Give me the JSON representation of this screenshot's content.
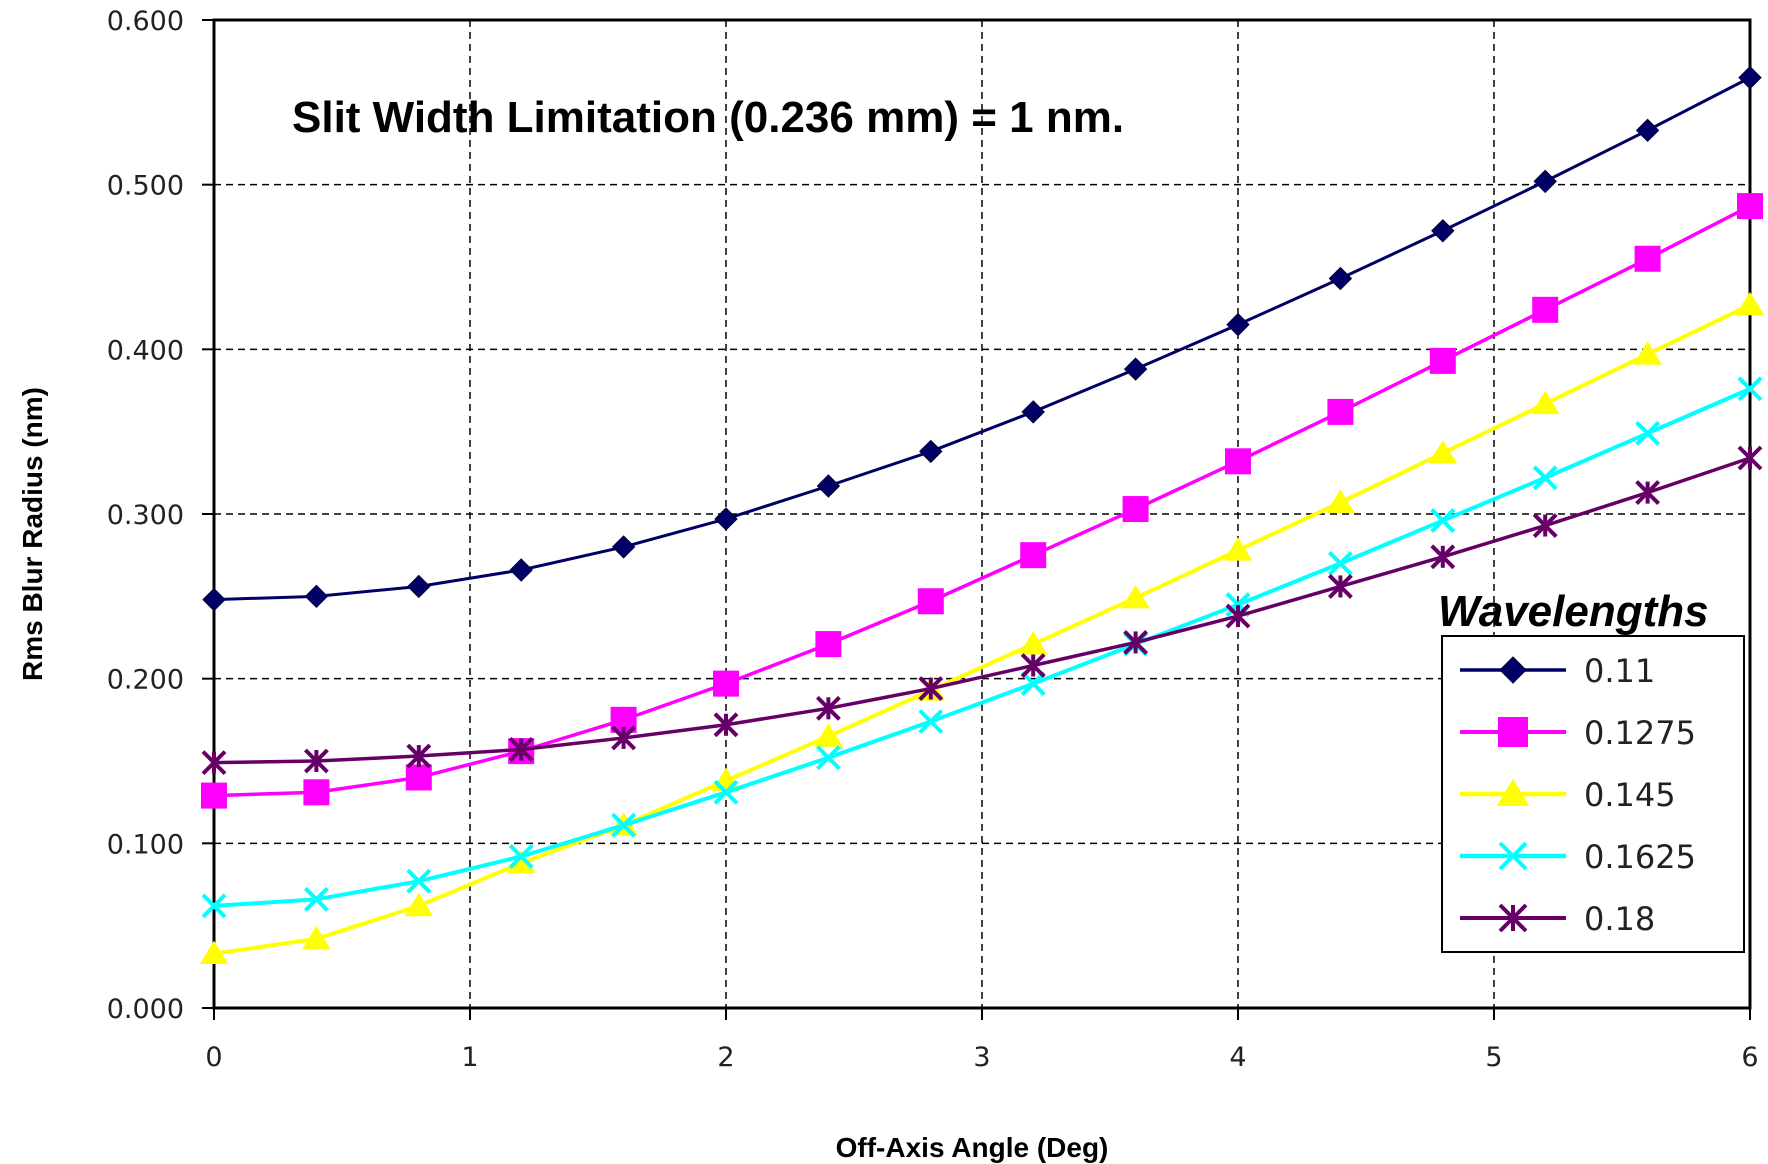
{
  "chart_data": {
    "type": "line",
    "title": "Slit Width Limitation (0.236 mm) = 1 nm.",
    "xlabel": "Off-Axis Angle (Deg)",
    "ylabel": "Rms Blur Radius (nm)",
    "xlim": [
      0,
      6
    ],
    "ylim": [
      0,
      0.6
    ],
    "x_ticks": [
      "0",
      "1",
      "2",
      "3",
      "4",
      "5",
      "6"
    ],
    "y_ticks": [
      "0.000",
      "0.100",
      "0.200",
      "0.300",
      "0.400",
      "0.500",
      "0.600"
    ],
    "grid": true,
    "legend_title": "Wavelengths",
    "legend_position": "lower-right",
    "x": [
      0,
      0.4,
      0.8,
      1.2,
      1.6,
      2.0,
      2.4,
      2.8,
      3.2,
      3.6,
      4.0,
      4.4,
      4.8,
      5.2,
      5.6,
      6.0
    ],
    "series": [
      {
        "name": "0.11",
        "color": "#000066",
        "marker": "diamond",
        "values": [
          0.248,
          0.25,
          0.256,
          0.266,
          0.28,
          0.297,
          0.317,
          0.338,
          0.362,
          0.388,
          0.415,
          0.443,
          0.472,
          0.502,
          0.533,
          0.565
        ]
      },
      {
        "name": "0.1275",
        "color": "#ff00ff",
        "marker": "square",
        "values": [
          0.129,
          0.131,
          0.14,
          0.156,
          0.175,
          0.197,
          0.221,
          0.247,
          0.275,
          0.303,
          0.332,
          0.362,
          0.393,
          0.424,
          0.455,
          0.487
        ]
      },
      {
        "name": "0.145",
        "color": "#ffff00",
        "marker": "triangle",
        "values": [
          0.033,
          0.042,
          0.062,
          0.088,
          0.111,
          0.138,
          0.165,
          0.193,
          0.221,
          0.249,
          0.278,
          0.307,
          0.337,
          0.367,
          0.397,
          0.427
        ]
      },
      {
        "name": "0.1625",
        "color": "#00ffff",
        "marker": "x",
        "values": [
          0.062,
          0.066,
          0.077,
          0.092,
          0.111,
          0.131,
          0.152,
          0.174,
          0.197,
          0.221,
          0.245,
          0.27,
          0.296,
          0.322,
          0.349,
          0.376
        ]
      },
      {
        "name": "0.18",
        "color": "#660066",
        "marker": "star",
        "values": [
          0.149,
          0.15,
          0.153,
          0.157,
          0.164,
          0.172,
          0.182,
          0.194,
          0.208,
          0.222,
          0.238,
          0.256,
          0.274,
          0.293,
          0.313,
          0.334
        ]
      }
    ]
  }
}
